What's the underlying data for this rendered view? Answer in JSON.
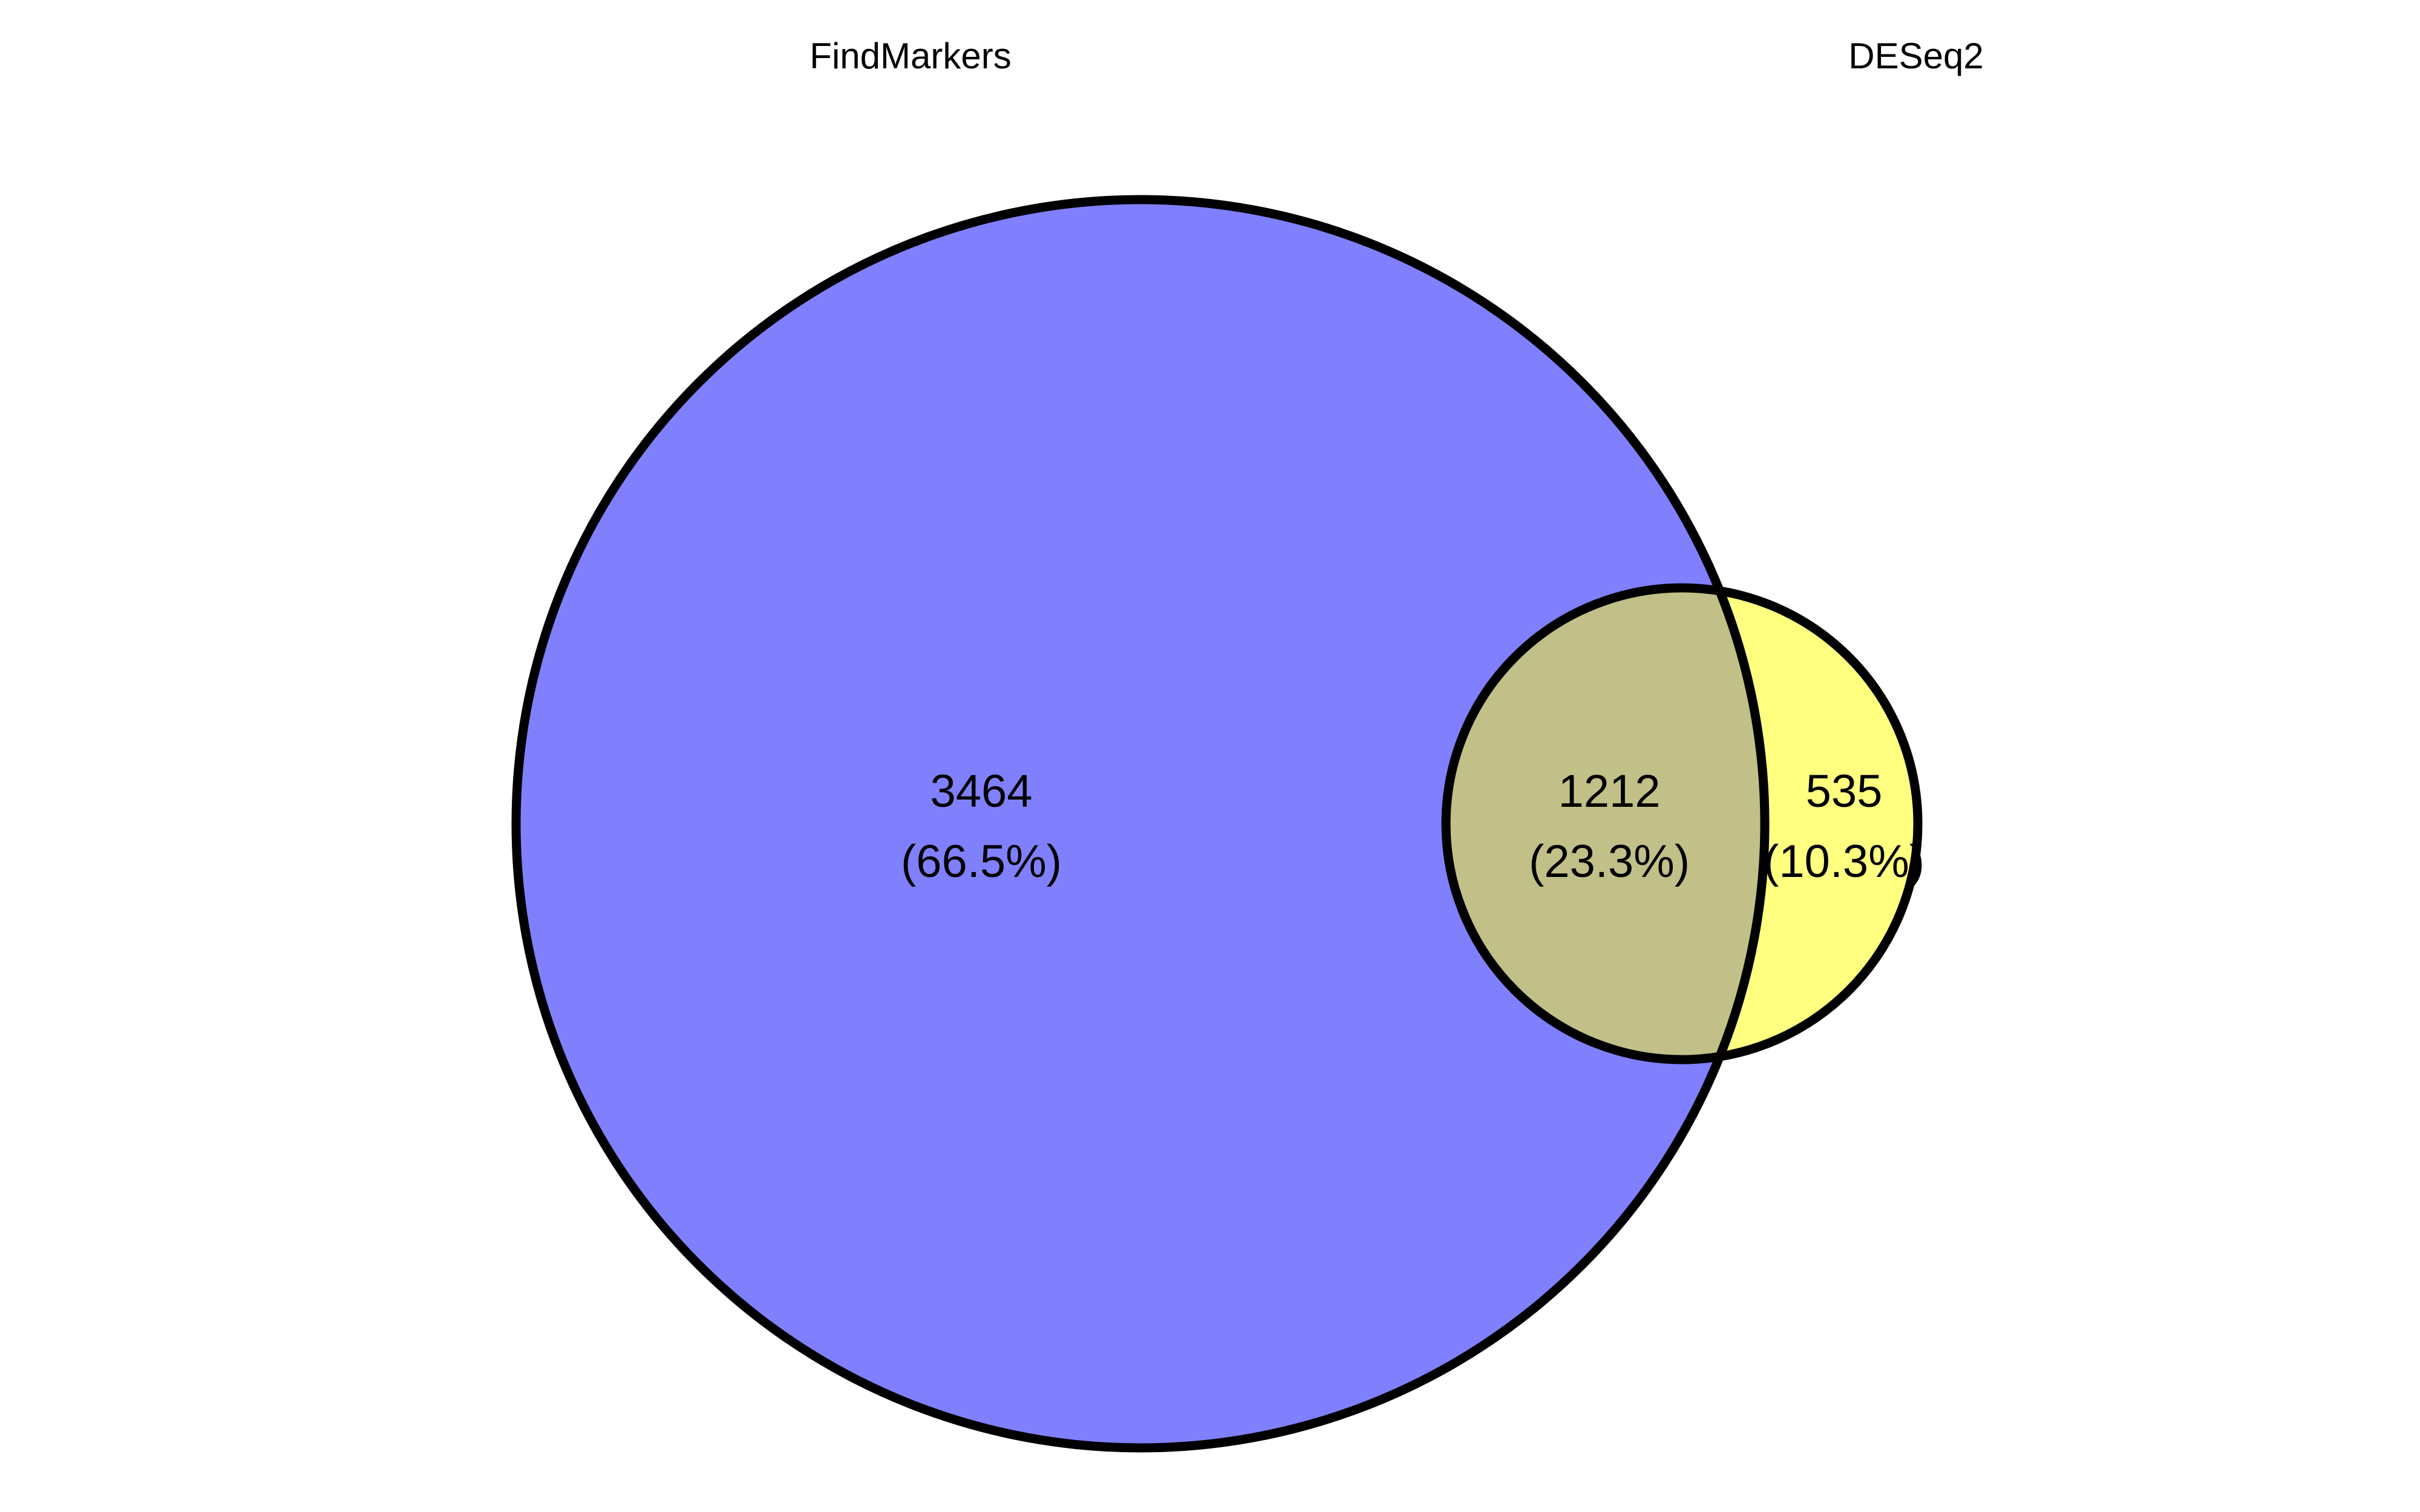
{
  "sets": [
    {
      "name": "FindMarkers",
      "color": "#8080ff"
    },
    {
      "name": "DESeq2",
      "color": "#ffff80"
    }
  ],
  "overlap_color": "#c0c088",
  "regions": {
    "a_only": {
      "count": "3464",
      "percent": "(66.5%)"
    },
    "both": {
      "count": "1212",
      "percent": "(23.3%)"
    },
    "b_only": {
      "count": "535",
      "percent": "(10.3%)"
    }
  }
}
